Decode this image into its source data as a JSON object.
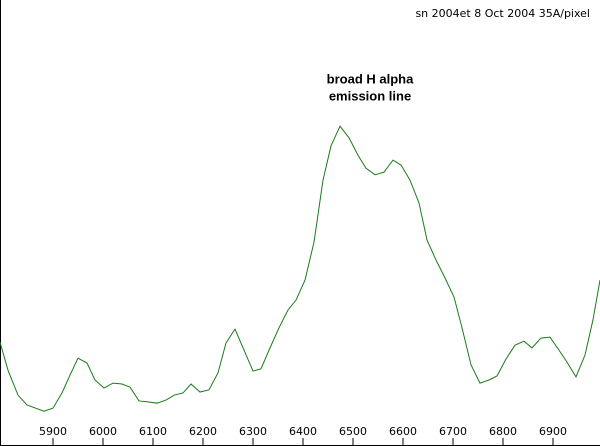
{
  "chart_data": {
    "type": "line",
    "title": "sn 2004et 8 Oct 2004  35A/pixel",
    "annotation": [
      "broad H alpha",
      "emission line"
    ],
    "annotation_color": "#d0103a",
    "x": [
      5794,
      5810,
      5830,
      5848,
      5882,
      5900,
      5918,
      5934,
      5950,
      5968,
      5984,
      6002,
      6020,
      6038,
      6054,
      6072,
      6090,
      6108,
      6126,
      6142,
      6160,
      6176,
      6194,
      6212,
      6230,
      6246,
      6264,
      6282,
      6300,
      6316,
      6334,
      6352,
      6370,
      6386,
      6404,
      6422,
      6440,
      6456,
      6474,
      6492,
      6510,
      6526,
      6544,
      6562,
      6580,
      6596,
      6614,
      6632,
      6648,
      6666,
      6684,
      6702,
      6718,
      6736,
      6754,
      6772,
      6788,
      6806,
      6824,
      6842,
      6858,
      6876,
      6894,
      6912,
      6928,
      6946,
      6964,
      6980,
      6994
    ],
    "series": [
      {
        "color": "#1a7a1a",
        "values": [
          23.3,
          17.0,
          11.4,
          9.2,
          7.8,
          8.5,
          11.9,
          15.9,
          19.7,
          18.6,
          14.8,
          13.0,
          14.1,
          13.9,
          13.2,
          10.1,
          9.9,
          9.6,
          10.3,
          11.4,
          11.9,
          13.9,
          12.1,
          12.6,
          16.4,
          23.1,
          26.2,
          21.5,
          16.8,
          17.3,
          22.0,
          26.5,
          30.5,
          32.7,
          37.2,
          45.7,
          59.6,
          67.3,
          71.7,
          69.1,
          65.2,
          62.3,
          60.8,
          61.4,
          64.1,
          63.0,
          59.6,
          54.5,
          46.2,
          41.7,
          37.7,
          33.4,
          26.5,
          18.2,
          14.1,
          14.8,
          15.7,
          19.5,
          22.6,
          23.5,
          22.0,
          24.2,
          24.4,
          21.5,
          18.8,
          15.5,
          20.4,
          28.3,
          37.2
        ]
      }
    ],
    "xlim": [
      5794,
      6994
    ],
    "xticks": [
      5900,
      6000,
      6100,
      6200,
      6300,
      6400,
      6500,
      6600,
      6700,
      6800,
      6900
    ],
    "ylim": [
      0,
      100
    ]
  }
}
